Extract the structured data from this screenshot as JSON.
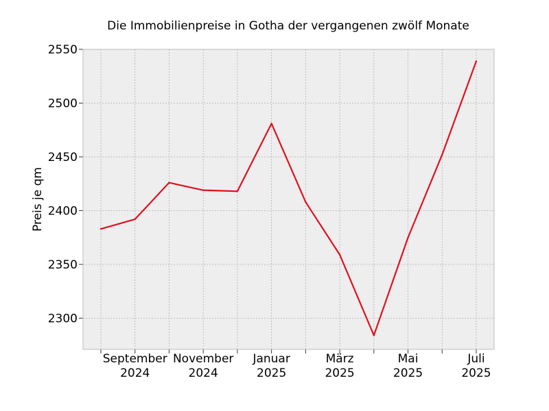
{
  "chart_data": {
    "type": "line",
    "title": "Die Immobilienpreise in Gotha der vergangenen zwölf Monate",
    "xlabel": "",
    "ylabel": "Preis je qm",
    "grid": true,
    "legend": "none",
    "x": [
      "2024-08",
      "2024-09",
      "2024-10",
      "2024-11",
      "2024-12",
      "2025-01",
      "2025-02",
      "2025-03",
      "2025-04",
      "2025-05",
      "2025-06",
      "2025-07"
    ],
    "x_tick_labels": [
      {
        "x": "2024-09",
        "line1": "September",
        "line2": "2024"
      },
      {
        "x": "2024-11",
        "line1": "November",
        "line2": "2024"
      },
      {
        "x": "2025-01",
        "line1": "Januar",
        "line2": "2025"
      },
      {
        "x": "2025-03",
        "line1": "März",
        "line2": "2025"
      },
      {
        "x": "2025-05",
        "line1": "Mai",
        "line2": "2025"
      },
      {
        "x": "2025-07",
        "line1": "Juli",
        "line2": "2025"
      }
    ],
    "y_ticks": [
      2300,
      2350,
      2400,
      2450,
      2500,
      2550
    ],
    "ylim": [
      2271,
      2550
    ],
    "series": [
      {
        "color": "#e0101e",
        "values": [
          2383,
          2392,
          2426,
          2419,
          2418,
          2481,
          2408,
          2359,
          2284,
          2375,
          2452,
          2539
        ]
      }
    ],
    "colors": {
      "plot_background": "#eeeeee",
      "grid": "#b0b0b0",
      "frame": "#bcbcbc"
    }
  }
}
